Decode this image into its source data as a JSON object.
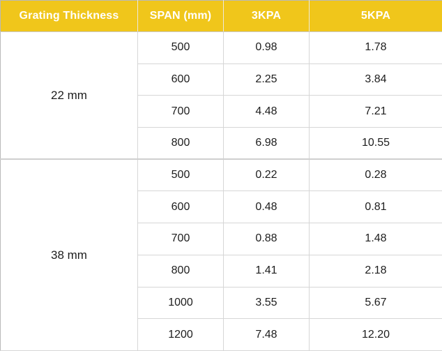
{
  "style": {
    "header_bg": "#F0C61B",
    "header_text": "#FFFFFF",
    "body_text": "#1D1D1D",
    "grid_border": "#D6D6D6",
    "outer_border": "#B9B9B9"
  },
  "chart_data": {
    "type": "table",
    "columns": [
      "Grating Thickness",
      "SPAN (mm)",
      "3KPA",
      "5KPA"
    ],
    "groups": [
      {
        "thickness": "22 mm",
        "rows": [
          [
            "500",
            "0.98",
            "1.78"
          ],
          [
            "600",
            "2.25",
            "3.84"
          ],
          [
            "700",
            "4.48",
            "7.21"
          ],
          [
            "800",
            "6.98",
            "10.55"
          ]
        ]
      },
      {
        "thickness": "38 mm",
        "rows": [
          [
            "500",
            "0.22",
            "0.28"
          ],
          [
            "600",
            "0.48",
            "0.81"
          ],
          [
            "700",
            "0.88",
            "1.48"
          ],
          [
            "800",
            "1.41",
            "2.18"
          ],
          [
            "1000",
            "3.55",
            "5.67"
          ],
          [
            "1200",
            "7.48",
            "12.20"
          ]
        ]
      }
    ]
  }
}
